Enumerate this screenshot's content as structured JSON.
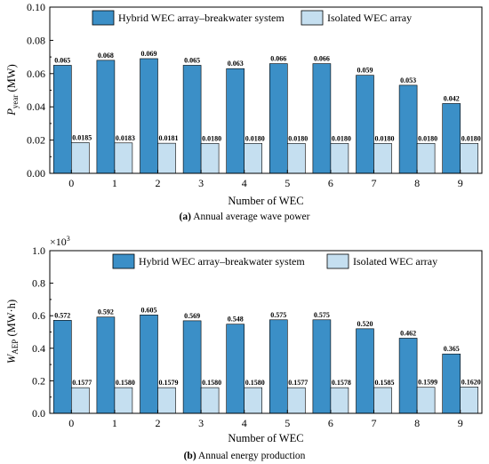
{
  "chart_data": [
    {
      "type": "bar",
      "categories": [
        "0",
        "1",
        "2",
        "3",
        "4",
        "5",
        "6",
        "7",
        "8",
        "9"
      ],
      "series": [
        {
          "name": "Hybrid WEC array–breakwater system",
          "values": [
            0.065,
            0.068,
            0.069,
            0.065,
            0.063,
            0.066,
            0.066,
            0.059,
            0.053,
            0.042
          ],
          "labels": [
            "0.065",
            "0.068",
            "0.069",
            "0.065",
            "0.063",
            "0.066",
            "0.066",
            "0.059",
            "0.053",
            "0.042"
          ]
        },
        {
          "name": "Isolated WEC array",
          "values": [
            0.0185,
            0.0183,
            0.0181,
            0.018,
            0.018,
            0.018,
            0.018,
            0.018,
            0.018,
            0.018
          ],
          "labels": [
            "0.0185",
            "0.0183",
            "0.0181",
            "0.0180",
            "0.0180",
            "0.0180",
            "0.0180",
            "0.0180",
            "0.0180",
            "0.0180"
          ]
        }
      ],
      "ylim": [
        0,
        0.1
      ],
      "yticks": [
        "0.00",
        "0.02",
        "0.04",
        "0.06",
        "0.08",
        "0.10"
      ],
      "xlabel": "Number of WEC",
      "ylabel_main": "P",
      "ylabel_sub": "year",
      "ylabel_unit": " (MW)",
      "legend": "top",
      "caption_letter": "(a)",
      "caption_text": " Annual average wave power",
      "colors": {
        "hybrid": "#3b8fc7",
        "isolated": "#c5dff0"
      }
    },
    {
      "type": "bar",
      "categories": [
        "0",
        "1",
        "2",
        "3",
        "4",
        "5",
        "6",
        "7",
        "8",
        "9"
      ],
      "series": [
        {
          "name": "Hybrid WEC array–breakwater system",
          "values": [
            0.572,
            0.592,
            0.605,
            0.569,
            0.548,
            0.575,
            0.575,
            0.52,
            0.462,
            0.365
          ],
          "labels": [
            "0.572",
            "0.592",
            "0.605",
            "0.569",
            "0.548",
            "0.575",
            "0.575",
            "0.520",
            "0.462",
            "0.365"
          ]
        },
        {
          "name": "Isolated WEC array",
          "values": [
            0.1577,
            0.158,
            0.1579,
            0.158,
            0.158,
            0.1577,
            0.1578,
            0.1585,
            0.1599,
            0.162
          ],
          "labels": [
            "0.1577",
            "0.1580",
            "0.1579",
            "0.1580",
            "0.1580",
            "0.1577",
            "0.1578",
            "0.1585",
            "0.1599",
            "0.1620"
          ]
        }
      ],
      "ylim": [
        0,
        1.0
      ],
      "yticks": [
        "0.0",
        "0.2",
        "0.4",
        "0.6",
        "0.8",
        "1.0"
      ],
      "y_multiplier": "×10",
      "y_multiplier_exp": "3",
      "xlabel": "Number of WEC",
      "ylabel_main": "W",
      "ylabel_sub": "AEP",
      "ylabel_unit": " (MW·h)",
      "legend": "top",
      "caption_letter": "(b)",
      "caption_text": " Annual energy production",
      "colors": {
        "hybrid": "#3b8fc7",
        "isolated": "#c5dff0"
      }
    }
  ]
}
